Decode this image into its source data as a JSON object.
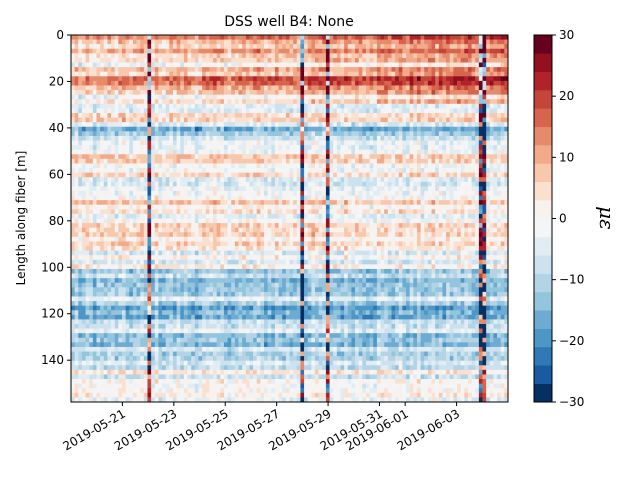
{
  "chart_data": {
    "type": "heatmap",
    "title": "DSS well B4: None",
    "ylabel": "Length along fiber [m]",
    "xlabel": "",
    "colorbar_label": "με",
    "x_tick_labels": [
      "2019-05-21",
      "2019-05-23",
      "2019-05-25",
      "2019-05-27",
      "2019-05-29",
      "2019-05-31",
      "2019-06-01",
      "2019-06-03"
    ],
    "x_tick_dates": [
      "2019-05-21",
      "2019-05-23",
      "2019-05-25",
      "2019-05-27",
      "2019-05-29",
      "2019-05-31",
      "2019-06-01",
      "2019-06-03"
    ],
    "xlim": [
      "2019-05-19",
      "2019-06-05"
    ],
    "y_ticks": [
      0,
      20,
      40,
      60,
      80,
      100,
      120,
      140
    ],
    "ylim": [
      158,
      0
    ],
    "y_inverted": true,
    "colorbar_ticks": [
      -30,
      -20,
      -10,
      0,
      10,
      20,
      30
    ],
    "clim": [
      -30,
      30
    ],
    "colormap": "RdBu_r",
    "colormap_levels": 20,
    "colormap_colors": [
      "#053061",
      "#1a5aa0",
      "#2f79b5",
      "#4d97c6",
      "#6eabd2",
      "#93c5dd",
      "#b2d4e6",
      "#cde2ef",
      "#e2edf3",
      "#f3f5f6",
      "#f8f2ef",
      "#fbe0d0",
      "#f8c8ad",
      "#f3aa8a",
      "#e68a6c",
      "#d7654d",
      "#c44539",
      "#b1222a",
      "#941021",
      "#67001f"
    ],
    "features": {
      "positive_bands_m": [
        [
          0,
          4
        ],
        [
          17,
          24
        ],
        [
          84,
          86
        ]
      ],
      "negative_bands_m": [
        [
          38,
          46
        ],
        [
          100,
          125
        ],
        [
          128,
          145
        ]
      ],
      "vertical_events": [
        "2019-05-22",
        "2019-05-28",
        "2019-05-29",
        "2019-06-04"
      ]
    }
  }
}
